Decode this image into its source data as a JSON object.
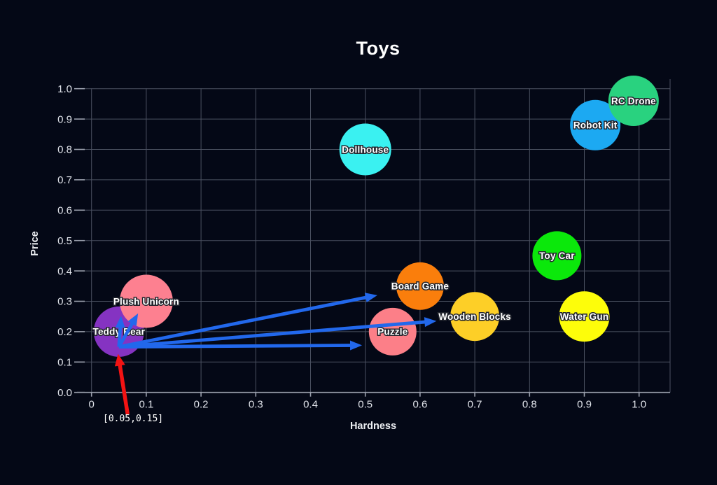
{
  "figure": {
    "title": "Toys"
  },
  "chart_data": {
    "type": "scatter",
    "title": "Toys",
    "xlabel": "Hardness",
    "ylabel": "Price",
    "xlim": [
      0,
      1.0
    ],
    "ylim": [
      0,
      1.0
    ],
    "grid": true,
    "legend": "none",
    "xtick_labels": [
      "0",
      "0.1",
      "0.2",
      "0.3",
      "0.4",
      "0.5",
      "0.6",
      "0.7",
      "0.8",
      "0.9",
      "1.0"
    ],
    "xtick_values": [
      0,
      0.1,
      0.2,
      0.3,
      0.4,
      0.5,
      0.6,
      0.7,
      0.8,
      0.9,
      1.0
    ],
    "ytick_labels": [
      "0.0",
      "0.1",
      "0.2",
      "0.3",
      "0.4",
      "0.5",
      "0.6",
      "0.7",
      "0.8",
      "0.9",
      "1.0"
    ],
    "ytick_values": [
      0,
      0.1,
      0.2,
      0.3,
      0.4,
      0.5,
      0.6,
      0.7,
      0.8,
      0.9,
      1.0
    ],
    "points": [
      {
        "label": "Teddy Bear",
        "x": 0.05,
        "y": 0.2,
        "color": "#8533c2",
        "r": 36
      },
      {
        "label": "Plush Unicorn",
        "x": 0.1,
        "y": 0.3,
        "color": "#fd8090",
        "r": 38
      },
      {
        "label": "Dollhouse",
        "x": 0.5,
        "y": 0.8,
        "color": "#3af1f1",
        "r": 37
      },
      {
        "label": "Puzzle",
        "x": 0.55,
        "y": 0.2,
        "color": "#fc7f88",
        "r": 34
      },
      {
        "label": "Board Game",
        "x": 0.6,
        "y": 0.35,
        "color": "#fa7e0c",
        "r": 34
      },
      {
        "label": "Wooden Blocks",
        "x": 0.7,
        "y": 0.25,
        "color": "#fdcf27",
        "r": 35
      },
      {
        "label": "Toy Car",
        "x": 0.85,
        "y": 0.45,
        "color": "#0be80b",
        "r": 35
      },
      {
        "label": "Water Gun",
        "x": 0.9,
        "y": 0.25,
        "color": "#fdfd0a",
        "r": 36
      },
      {
        "label": "Robot Kit",
        "x": 0.92,
        "y": 0.88,
        "color": "#1ca9f2",
        "r": 36
      },
      {
        "label": "RC Drone",
        "x": 0.99,
        "y": 0.96,
        "color": "#29d27f",
        "r": 36
      }
    ],
    "arrows": [
      {
        "to": "Teddy Bear",
        "x1": 0.05,
        "y1": 0.15,
        "x2": 0.054,
        "y2": 0.252
      },
      {
        "to": "Plush Unicorn",
        "x1": 0.05,
        "y1": 0.15,
        "x2": 0.085,
        "y2": 0.26
      },
      {
        "to": "Board Game",
        "x1": 0.05,
        "y1": 0.15,
        "x2": 0.522,
        "y2": 0.32
      },
      {
        "to": "Puzzle",
        "x1": 0.05,
        "y1": 0.15,
        "x2": 0.494,
        "y2": 0.155
      },
      {
        "to": "Wooden Blocks",
        "x1": 0.05,
        "y1": 0.15,
        "x2": 0.63,
        "y2": 0.235
      }
    ],
    "annotation": {
      "text": "[0.05,0.15]",
      "points_at": {
        "x": 0.05,
        "y": 0.15
      },
      "arrow": {
        "x1": 0.066,
        "y1": -0.072,
        "x2": 0.0485,
        "y2": 0.127
      }
    },
    "colors": {
      "background": "#040816",
      "grid": "#4b5161",
      "axis": "#9ba0ad",
      "tick_label": "#dfe2e9",
      "arrow_blue": "#2268ec",
      "arrow_red": "#f31313",
      "bubble_label_fill": "#ffffff",
      "bubble_label_outline": "#23262e"
    }
  }
}
